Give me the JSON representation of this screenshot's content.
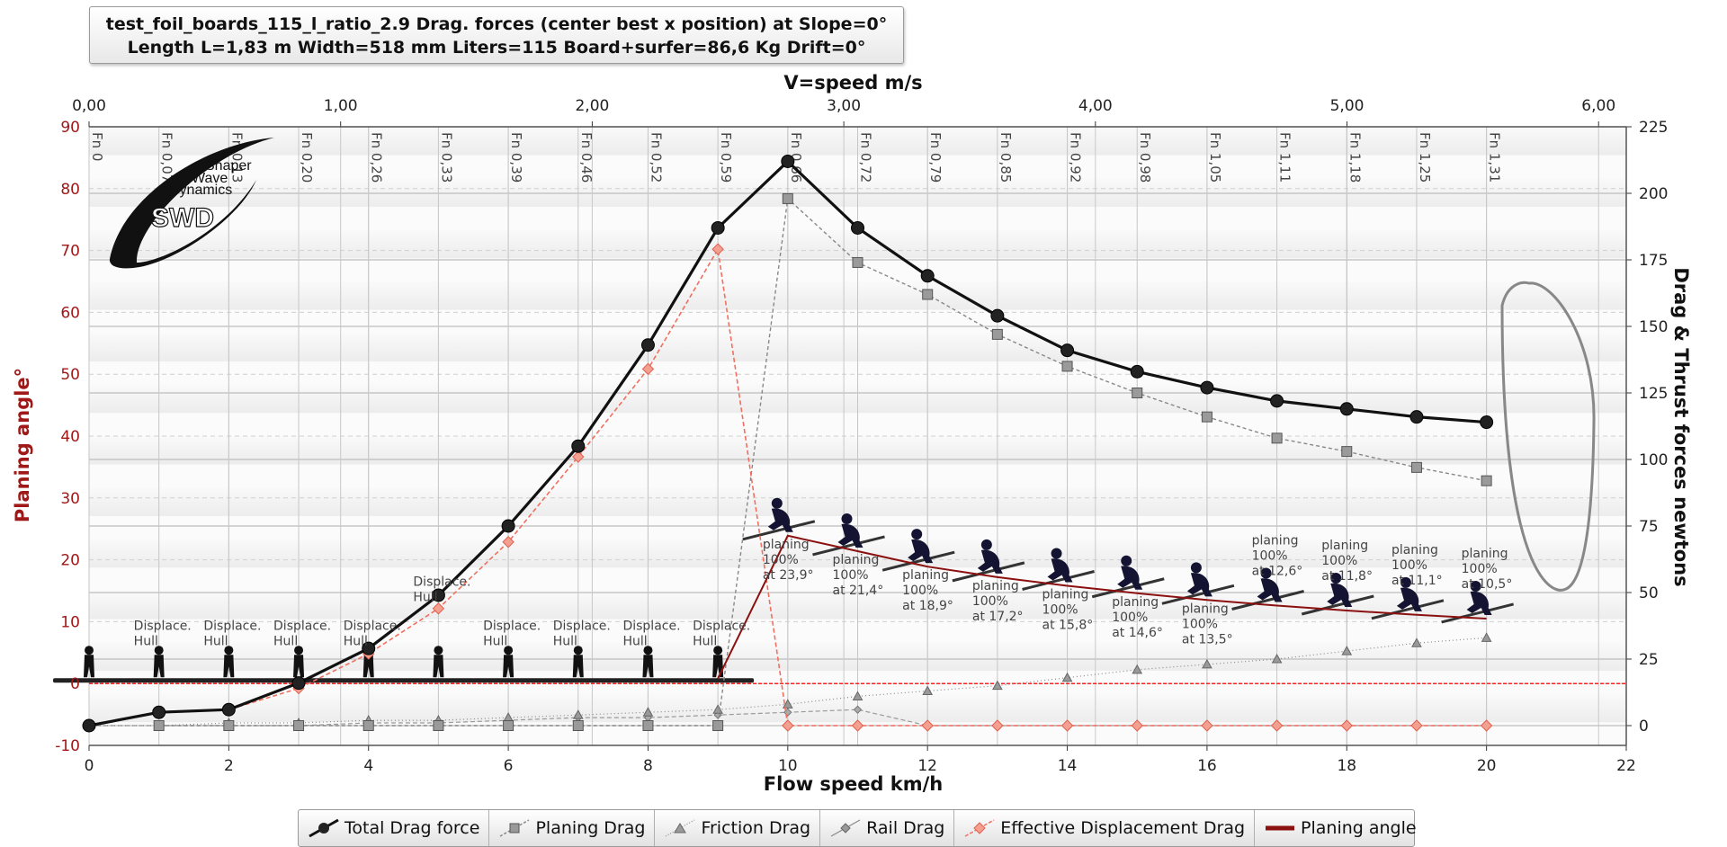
{
  "title": {
    "line1": "test_foil_boards_115_l_ratio_2.9 Drag. forces (center best x position) at  Slope=0°",
    "line2": "Length L=1,83 m Width=518 mm Liters=115 Board+surfer=86,6 Kg Drift=0°"
  },
  "logo": {
    "line1": "Shaper",
    "line2": "Wave",
    "line3": "Dynamics",
    "mark": "SWD"
  },
  "colors": {
    "total": "#111111",
    "planing_drag": "#888888",
    "effective_displacement": "#f07060",
    "planing_angle": "#8b1010",
    "zero_line": "#ff2020",
    "angle_axis": "#a01818"
  },
  "chart_data": {
    "type": "line",
    "xlabel": "Flow speed km/h",
    "x2label": "V=speed m/s",
    "ylabel_left": "Planing angle°",
    "ylabel_right": "Drag & Thrust forces newtons",
    "xlim": [
      0,
      22
    ],
    "x2lim": [
      0,
      6.11
    ],
    "ylim_left": [
      -10,
      90
    ],
    "ylim_right": [
      0,
      225
    ],
    "x_ticks": [
      "0",
      "2",
      "4",
      "6",
      "8",
      "10",
      "12",
      "14",
      "16",
      "18",
      "20",
      "22"
    ],
    "x2_ticks": [
      "0,00",
      "1,00",
      "2,00",
      "3,00",
      "4,00",
      "5,00",
      "6,00"
    ],
    "y_left_ticks": [
      "-10",
      "0",
      "10",
      "20",
      "30",
      "40",
      "50",
      "60",
      "70",
      "80",
      "90"
    ],
    "y_right_ticks": [
      "0",
      "25",
      "50",
      "75",
      "100",
      "125",
      "150",
      "175",
      "200",
      "225"
    ],
    "froude_labels": [
      "Fn 0",
      "Fn 0,07",
      "Fn 0,13",
      "Fn 0,20",
      "Fn 0,26",
      "Fn 0,33",
      "Fn 0,39",
      "Fn 0,46",
      "Fn 0,52",
      "Fn 0,59",
      "Fn 0,66",
      "Fn 0,72",
      "Fn 0,79",
      "Fn 0,85",
      "Fn 0,92",
      "Fn 0,98",
      "Fn 1,05",
      "Fn 1,11",
      "Fn 1,18",
      "Fn 1,25",
      "Fn 1,31"
    ],
    "x": [
      0,
      1,
      2,
      3,
      4,
      5,
      6,
      7,
      8,
      9,
      10,
      11,
      12,
      13,
      14,
      15,
      16,
      17,
      18,
      19,
      20
    ],
    "series": [
      {
        "name": "Total Drag force",
        "axis": "right",
        "marker": "circle",
        "values": [
          0,
          5,
          6,
          16,
          29,
          49,
          75,
          105,
          143,
          187,
          212,
          187,
          169,
          154,
          141,
          133,
          127,
          122,
          119,
          116,
          114
        ]
      },
      {
        "name": "Planing Drag",
        "axis": "right",
        "marker": "square",
        "values": [
          null,
          0,
          0,
          0,
          0,
          0,
          0,
          0,
          0,
          0,
          198,
          174,
          162,
          147,
          135,
          125,
          116,
          108,
          103,
          97,
          92
        ]
      },
      {
        "name": "Friction Drag",
        "axis": "right",
        "marker": "triangle",
        "values": [
          0,
          0,
          1,
          1,
          2,
          2,
          3,
          4,
          5,
          6,
          8,
          11,
          13,
          15,
          18,
          21,
          23,
          25,
          28,
          31,
          33
        ]
      },
      {
        "name": "Rail Drag",
        "axis": "right",
        "marker": "diamond-small",
        "values": [
          0,
          0,
          0,
          0,
          1,
          1,
          2,
          3,
          3,
          4,
          5,
          6,
          0,
          0,
          0,
          0,
          0,
          0,
          0,
          0,
          0
        ]
      },
      {
        "name": "Effective Displacement Drag",
        "axis": "right",
        "marker": "diamond",
        "values": [
          0,
          5,
          6,
          14,
          27,
          44,
          69,
          101,
          134,
          179,
          0,
          0,
          0,
          0,
          0,
          0,
          0,
          0,
          0,
          0,
          0
        ]
      },
      {
        "name": "Planing angle",
        "axis": "left",
        "marker": "none",
        "values": [
          null,
          null,
          null,
          null,
          null,
          null,
          null,
          null,
          null,
          0.8,
          23.9,
          21.4,
          18.9,
          17.2,
          15.8,
          14.6,
          13.5,
          12.6,
          11.8,
          11.1,
          10.5
        ]
      }
    ],
    "annotations": {
      "displace_label": [
        "Displace.",
        "Hull"
      ],
      "displace_x": [
        1,
        2,
        3,
        4,
        5,
        6,
        7,
        8,
        9
      ],
      "planing": [
        {
          "x": 10,
          "lines": [
            "planing",
            "100%",
            "at 23,9°"
          ]
        },
        {
          "x": 11,
          "lines": [
            "planing",
            "100%",
            "at 21,4°"
          ]
        },
        {
          "x": 12,
          "lines": [
            "planing",
            "100%",
            "at 18,9°"
          ]
        },
        {
          "x": 13,
          "lines": [
            "planing",
            "100%",
            "at 17,2°"
          ]
        },
        {
          "x": 14,
          "lines": [
            "planing",
            "100%",
            "at 15,8°"
          ]
        },
        {
          "x": 15,
          "lines": [
            "planing",
            "100%",
            "at 14,6°"
          ]
        },
        {
          "x": 16,
          "lines": [
            "planing",
            "100%",
            "at 13,5°"
          ]
        },
        {
          "x": 17,
          "lines": [
            "planing",
            "100%",
            "at 12,6°"
          ]
        },
        {
          "x": 18,
          "lines": [
            "planing",
            "100%",
            "at 11,8°"
          ]
        },
        {
          "x": 19,
          "lines": [
            "planing",
            "100%",
            "at 11,1°"
          ]
        },
        {
          "x": 20,
          "lines": [
            "planing",
            "100%",
            "at 10,5°"
          ]
        }
      ]
    },
    "grid": true,
    "legend_position": "bottom"
  }
}
